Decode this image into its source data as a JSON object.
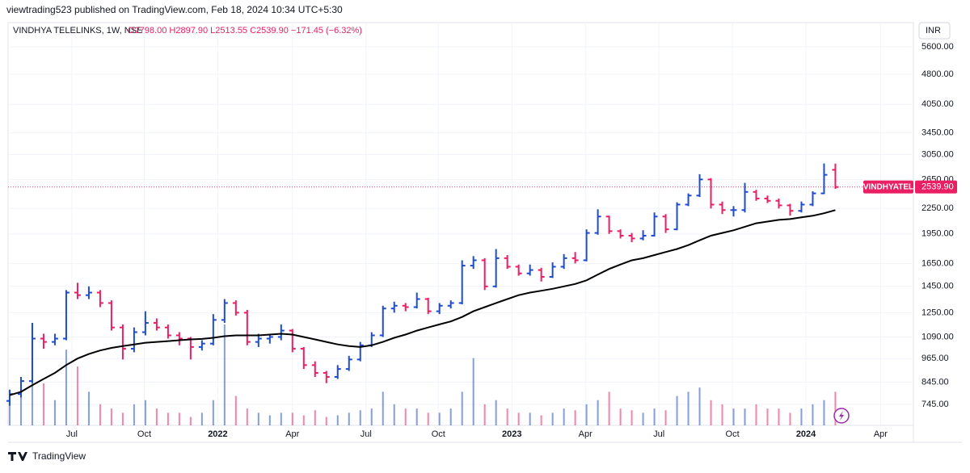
{
  "header": "viewtrading523 published on TradingView.com, Feb 18, 2024 10:34 UTC+5:30",
  "footer": "TradingView",
  "chart_data": {
    "type": "ohlc",
    "legend": {
      "symbol": "VINDHYA TELELINKS, 1W, NSE",
      "open": "O2798.00",
      "high": "H2897.90",
      "low": "L2513.55",
      "close": "C2539.90",
      "change": "−171.45 (−6.32%)"
    },
    "currency": "INR",
    "ticker": "VINDHYATEL",
    "last_price_label": "2539.90",
    "up_color": "#1e4bd2",
    "down_color": "#e91e63",
    "ma_color": "#000000",
    "log_scale": true,
    "grid": true,
    "ylim": [
      662,
      6420
    ],
    "yticks": [
      {
        "value": 745,
        "label": "745.00"
      },
      {
        "value": 845,
        "label": "845.00"
      },
      {
        "value": 965,
        "label": "965.00"
      },
      {
        "value": 1090,
        "label": "1090.00"
      },
      {
        "value": 1250,
        "label": "1250.00"
      },
      {
        "value": 1450,
        "label": "1450.00"
      },
      {
        "value": 1650,
        "label": "1650.00"
      },
      {
        "value": 1950,
        "label": "1950.00"
      },
      {
        "value": 2250,
        "label": "2250.00"
      },
      {
        "value": 2650,
        "label": "2650.00"
      },
      {
        "value": 3050,
        "label": "3050.00"
      },
      {
        "value": 3450,
        "label": "3450.00"
      },
      {
        "value": 4050,
        "label": "4050.00"
      },
      {
        "value": 4800,
        "label": "4800.00"
      },
      {
        "value": 5600,
        "label": "5600.00"
      }
    ],
    "xlim": [
      -0.14,
      79.9
    ],
    "xticks": [
      {
        "value": 5.5,
        "label": "Jul"
      },
      {
        "value": 11.9,
        "label": "Oct"
      },
      {
        "value": 18.4,
        "label": "2022"
      },
      {
        "value": 25,
        "label": "Apr"
      },
      {
        "value": 31.5,
        "label": "Jul"
      },
      {
        "value": 37.9,
        "label": "Oct"
      },
      {
        "value": 44.4,
        "label": "2023"
      },
      {
        "value": 50.9,
        "label": "Apr"
      },
      {
        "value": 57.4,
        "label": "Jul"
      },
      {
        "value": 63.9,
        "label": "Oct"
      },
      {
        "value": 70.4,
        "label": "2024"
      },
      {
        "value": 77,
        "label": "Apr"
      }
    ],
    "ohlc": [
      [
        760,
        810,
        740,
        790
      ],
      [
        790,
        870,
        775,
        850
      ],
      [
        850,
        1180,
        840,
        1080
      ],
      [
        1080,
        1110,
        1020,
        1060
      ],
      [
        1060,
        1110,
        1040,
        1080
      ],
      [
        1080,
        1420,
        1070,
        1400
      ],
      [
        1400,
        1480,
        1350,
        1380
      ],
      [
        1380,
        1450,
        1350,
        1400
      ],
      [
        1400,
        1420,
        1290,
        1320
      ],
      [
        1320,
        1340,
        1130,
        1150
      ],
      [
        1150,
        1170,
        960,
        1020
      ],
      [
        1020,
        1150,
        1000,
        1120
      ],
      [
        1120,
        1260,
        1100,
        1180
      ],
      [
        1180,
        1210,
        1130,
        1150
      ],
      [
        1150,
        1170,
        1080,
        1100
      ],
      [
        1100,
        1120,
        1040,
        1080
      ],
      [
        1080,
        1090,
        960,
        1030
      ],
      [
        1030,
        1070,
        1010,
        1050
      ],
      [
        1050,
        1240,
        1040,
        1200
      ],
      [
        1200,
        1350,
        1180,
        1320
      ],
      [
        1320,
        1340,
        1230,
        1250
      ],
      [
        1250,
        1270,
        1040,
        1060
      ],
      [
        1060,
        1110,
        1030,
        1080
      ],
      [
        1080,
        1110,
        1050,
        1090
      ],
      [
        1090,
        1170,
        1070,
        1130
      ],
      [
        1130,
        1140,
        1000,
        1020
      ],
      [
        1020,
        1030,
        910,
        930
      ],
      [
        930,
        950,
        870,
        890
      ],
      [
        890,
        900,
        840,
        870
      ],
      [
        870,
        930,
        860,
        910
      ],
      [
        910,
        980,
        900,
        960
      ],
      [
        960,
        1060,
        950,
        1040
      ],
      [
        1040,
        1120,
        1030,
        1100
      ],
      [
        1100,
        1300,
        1090,
        1280
      ],
      [
        1280,
        1330,
        1250,
        1300
      ],
      [
        1300,
        1320,
        1260,
        1290
      ],
      [
        1290,
        1400,
        1280,
        1350
      ],
      [
        1350,
        1360,
        1240,
        1260
      ],
      [
        1260,
        1320,
        1240,
        1300
      ],
      [
        1300,
        1340,
        1280,
        1320
      ],
      [
        1320,
        1680,
        1310,
        1630
      ],
      [
        1630,
        1720,
        1600,
        1680
      ],
      [
        1680,
        1700,
        1420,
        1450
      ],
      [
        1450,
        1790,
        1440,
        1700
      ],
      [
        1700,
        1730,
        1600,
        1620
      ],
      [
        1620,
        1640,
        1540,
        1560
      ],
      [
        1560,
        1640,
        1540,
        1590
      ],
      [
        1590,
        1610,
        1490,
        1530
      ],
      [
        1530,
        1660,
        1520,
        1620
      ],
      [
        1620,
        1740,
        1600,
        1700
      ],
      [
        1700,
        1760,
        1650,
        1680
      ],
      [
        1680,
        2000,
        1670,
        1960
      ],
      [
        1960,
        2240,
        1940,
        2150
      ],
      [
        2150,
        2160,
        1950,
        1980
      ],
      [
        1980,
        2000,
        1900,
        1930
      ],
      [
        1930,
        1960,
        1860,
        1900
      ],
      [
        1900,
        1990,
        1880,
        1930
      ],
      [
        1930,
        2200,
        1920,
        2150
      ],
      [
        2150,
        2180,
        1960,
        2000
      ],
      [
        2000,
        2330,
        1990,
        2300
      ],
      [
        2300,
        2450,
        2280,
        2420
      ],
      [
        2420,
        2730,
        2400,
        2650
      ],
      [
        2650,
        2670,
        2250,
        2300
      ],
      [
        2300,
        2340,
        2180,
        2230
      ],
      [
        2230,
        2280,
        2150,
        2230
      ],
      [
        2230,
        2600,
        2200,
        2470
      ],
      [
        2470,
        2500,
        2350,
        2380
      ],
      [
        2380,
        2420,
        2320,
        2350
      ],
      [
        2350,
        2380,
        2250,
        2290
      ],
      [
        2290,
        2310,
        2160,
        2220
      ],
      [
        2220,
        2340,
        2200,
        2300
      ],
      [
        2300,
        2480,
        2280,
        2450
      ],
      [
        2450,
        2900,
        2440,
        2720
      ],
      [
        2798,
        2897.9,
        2513.55,
        2539.9
      ]
    ],
    "ma": [
      785,
      800,
      830,
      860,
      890,
      930,
      965,
      990,
      1010,
      1025,
      1035,
      1045,
      1055,
      1060,
      1065,
      1070,
      1075,
      1078,
      1085,
      1095,
      1100,
      1100,
      1100,
      1105,
      1110,
      1105,
      1090,
      1075,
      1060,
      1045,
      1035,
      1030,
      1040,
      1060,
      1085,
      1105,
      1130,
      1150,
      1170,
      1190,
      1220,
      1260,
      1290,
      1320,
      1350,
      1380,
      1400,
      1415,
      1430,
      1450,
      1470,
      1500,
      1550,
      1600,
      1640,
      1680,
      1700,
      1730,
      1760,
      1790,
      1830,
      1880,
      1930,
      1960,
      1990,
      2030,
      2070,
      2090,
      2110,
      2120,
      2140,
      2160,
      2190,
      2230
    ],
    "volume": [
      30,
      40,
      120,
      50,
      30,
      90,
      70,
      40,
      25,
      20,
      15,
      25,
      30,
      20,
      15,
      15,
      10,
      15,
      30,
      120,
      35,
      20,
      15,
      12,
      15,
      15,
      12,
      18,
      10,
      12,
      15,
      18,
      20,
      40,
      25,
      20,
      20,
      15,
      15,
      20,
      40,
      80,
      25,
      30,
      20,
      15,
      15,
      12,
      15,
      20,
      18,
      25,
      30,
      40,
      20,
      18,
      15,
      20,
      18,
      35,
      40,
      45,
      30,
      25,
      20,
      20,
      25,
      20,
      20,
      15,
      20,
      25,
      30,
      40
    ]
  }
}
